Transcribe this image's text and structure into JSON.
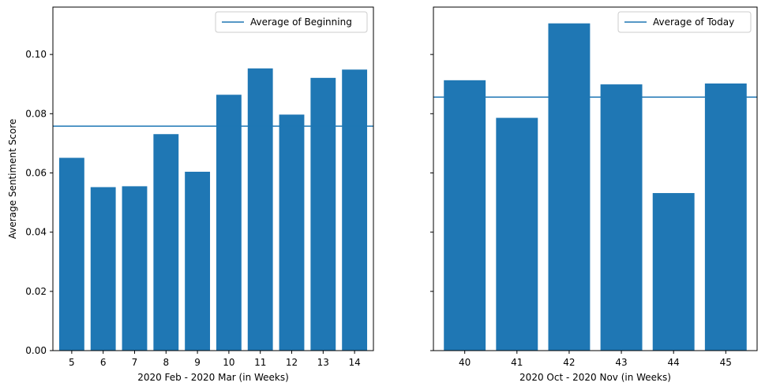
{
  "chart_data": [
    {
      "type": "bar",
      "categories": [
        "5",
        "6",
        "7",
        "8",
        "9",
        "10",
        "11",
        "12",
        "13",
        "14"
      ],
      "values": [
        0.0651,
        0.0552,
        0.0555,
        0.0731,
        0.0604,
        0.0864,
        0.0953,
        0.0797,
        0.0921,
        0.0949
      ],
      "average": 0.0758,
      "average_label": "Average of Beginning",
      "xlabel": "2020 Feb - 2020 Mar (in Weeks)",
      "ylabel": "Average Sentiment Score",
      "ylim": [
        0,
        0.116
      ],
      "yticks": [
        "0.00",
        "0.02",
        "0.04",
        "0.06",
        "0.08",
        "0.10"
      ],
      "color": "#1f77b4",
      "legend_position": "upper right"
    },
    {
      "type": "bar",
      "categories": [
        "40",
        "41",
        "42",
        "43",
        "44",
        "45"
      ],
      "values": [
        0.0913,
        0.0786,
        0.1105,
        0.0899,
        0.0532,
        0.0902
      ],
      "average": 0.0856,
      "average_label": "Average of Today",
      "xlabel": "2020 Oct - 2020 Nov (in Weeks)",
      "ylabel": "",
      "ylim": [
        0,
        0.116
      ],
      "yticks": [
        "0.00",
        "0.02",
        "0.04",
        "0.06",
        "0.08",
        "0.10"
      ],
      "color": "#1f77b4",
      "legend_position": "upper right"
    }
  ]
}
